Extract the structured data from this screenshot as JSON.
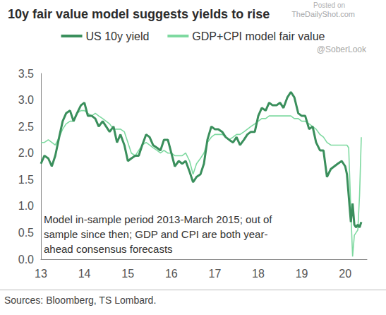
{
  "chart_data": {
    "type": "line",
    "title": "10y fair value model suggests yields to rise",
    "x": [
      13.0,
      13.08,
      13.17,
      13.25,
      13.33,
      13.42,
      13.5,
      13.58,
      13.67,
      13.75,
      13.83,
      13.92,
      14.0,
      14.08,
      14.17,
      14.25,
      14.33,
      14.42,
      14.5,
      14.58,
      14.67,
      14.75,
      14.83,
      14.92,
      15.0,
      15.08,
      15.17,
      15.25,
      15.33,
      15.42,
      15.5,
      15.58,
      15.67,
      15.75,
      15.83,
      15.92,
      16.0,
      16.08,
      16.17,
      16.25,
      16.33,
      16.42,
      16.5,
      16.58,
      16.67,
      16.75,
      16.83,
      16.92,
      17.0,
      17.08,
      17.17,
      17.25,
      17.33,
      17.42,
      17.5,
      17.58,
      17.67,
      17.75,
      17.83,
      17.92,
      18.0,
      18.08,
      18.17,
      18.25,
      18.33,
      18.42,
      18.5,
      18.58,
      18.67,
      18.75,
      18.83,
      18.92,
      19.0,
      19.08,
      19.17,
      19.25,
      19.33,
      19.42,
      19.5,
      19.58,
      19.67,
      19.75,
      19.83,
      19.92,
      20.0,
      20.04,
      20.08,
      20.13,
      20.17,
      20.21,
      20.25,
      20.29,
      20.33,
      20.37
    ],
    "series": [
      {
        "name": "US 10y yield",
        "color": "#3a8f5c",
        "line_style": "solid",
        "values": [
          1.8,
          1.95,
          1.9,
          1.75,
          1.95,
          2.3,
          2.6,
          2.75,
          2.8,
          2.6,
          2.75,
          2.9,
          2.95,
          2.7,
          2.7,
          2.65,
          2.5,
          2.6,
          2.5,
          2.4,
          2.5,
          2.2,
          2.35,
          2.15,
          1.85,
          1.9,
          1.95,
          1.95,
          2.15,
          2.35,
          2.3,
          2.15,
          2.1,
          2.05,
          2.25,
          2.25,
          2.0,
          1.75,
          1.85,
          1.8,
          1.85,
          1.65,
          1.45,
          1.55,
          1.6,
          1.8,
          2.25,
          2.5,
          2.45,
          2.45,
          2.4,
          2.3,
          2.25,
          2.2,
          2.3,
          2.15,
          2.25,
          2.35,
          2.4,
          2.4,
          2.7,
          2.85,
          2.8,
          2.95,
          2.9,
          2.9,
          2.95,
          2.85,
          3.05,
          3.15,
          3.05,
          2.75,
          2.7,
          2.7,
          2.45,
          2.5,
          2.2,
          2.05,
          2.05,
          1.55,
          1.7,
          1.75,
          1.8,
          1.85,
          1.75,
          1.6,
          1.2,
          0.7,
          1.05,
          0.65,
          0.6,
          0.65,
          0.6,
          0.7
        ]
      },
      {
        "name": "GDP+CPI model fair value",
        "color": "#7ed9a0",
        "line_style": "solid",
        "values": [
          2.2,
          2.2,
          2.25,
          2.2,
          2.15,
          2.3,
          2.45,
          2.55,
          2.6,
          2.6,
          2.75,
          2.8,
          2.8,
          2.75,
          2.7,
          2.75,
          2.7,
          2.65,
          2.6,
          2.55,
          2.45,
          2.45,
          2.45,
          2.4,
          2.2,
          2.0,
          1.95,
          2.05,
          2.15,
          2.2,
          2.15,
          2.1,
          2.05,
          2.0,
          2.05,
          2.0,
          2.0,
          1.95,
          1.95,
          1.95,
          2.0,
          1.85,
          1.6,
          1.8,
          1.9,
          2.0,
          2.2,
          2.3,
          2.35,
          2.35,
          2.35,
          2.3,
          2.25,
          2.3,
          2.35,
          2.35,
          2.4,
          2.45,
          2.5,
          2.55,
          2.6,
          2.65,
          2.65,
          2.7,
          2.7,
          2.7,
          2.7,
          2.7,
          2.7,
          2.7,
          2.65,
          2.65,
          2.6,
          2.6,
          2.55,
          2.5,
          2.45,
          2.35,
          2.3,
          2.2,
          2.15,
          2.15,
          2.15,
          2.15,
          2.15,
          2.15,
          2.1,
          0.9,
          0.05,
          0.45,
          0.5,
          0.55,
          1.2,
          2.3
        ]
      }
    ],
    "xlim": [
      13,
      20.5
    ],
    "xticks": [
      13,
      14,
      15,
      16,
      17,
      18,
      19,
      20
    ],
    "ylim": [
      0,
      3.5
    ],
    "yticks": [
      {
        "value": 0,
        "label": "0.0"
      },
      {
        "value": 0.5,
        "label": "0.5"
      },
      {
        "value": 1,
        "label": "1.0"
      },
      {
        "value": 1.5,
        "label": "1.5"
      },
      {
        "value": 2,
        "label": "2.0"
      },
      {
        "value": 2.5,
        "label": "2.5"
      },
      {
        "value": 3,
        "label": "3.0"
      },
      {
        "value": 3.5,
        "label": "3.5"
      }
    ],
    "grid": false,
    "legend": "top",
    "annotation": [
      "Model in-sample period 2013-March 2015; out of",
      "sample since then; GDP and CPI are both year-",
      "ahead consensus forecasts"
    ],
    "source": "Sources: Bloomberg, TS Lombard.",
    "watermark": [
      "Posted on",
      "TheDailyShot.com",
      "@SoberLook"
    ]
  }
}
